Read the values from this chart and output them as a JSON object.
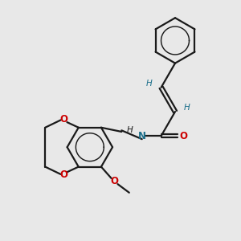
{
  "bg": "#e8e8e8",
  "bc": "#1a1a1a",
  "oc": "#cc0000",
  "nc": "#1a6e8a",
  "hc": "#1a6e8a",
  "lw": 1.6,
  "dlw": 1.4,
  "fs": 8.5,
  "hfs": 7.5,
  "figsize": [
    3.0,
    3.0
  ],
  "dpi": 100,
  "xlim": [
    0.0,
    8.5
  ],
  "ylim": [
    0.0,
    9.0
  ]
}
